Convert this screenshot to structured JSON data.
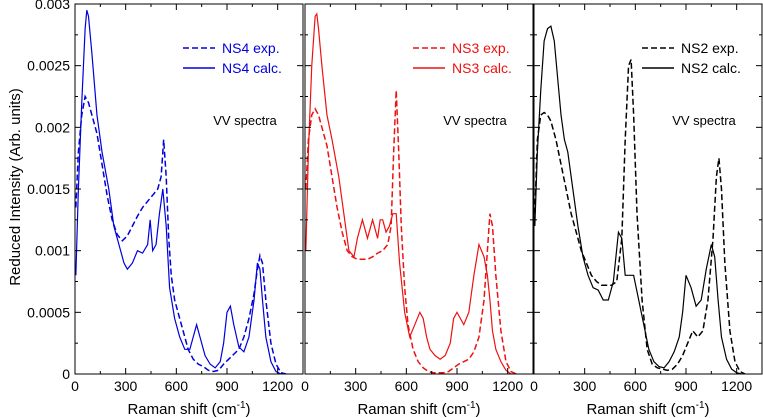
{
  "chart_data": {
    "type": "line",
    "ylabel": "Reduced Intensity (Arb. units)",
    "ylim": [
      0,
      0.003
    ],
    "yticks": [
      "0",
      "0.0005",
      "0.001",
      "0.0015",
      "0.002",
      "0.0025",
      "0.003"
    ],
    "yticks_values": [
      0,
      0.0005,
      0.001,
      0.0015,
      0.002,
      0.0025,
      0.003
    ],
    "xlim": [
      0,
      1350
    ],
    "xticks": [
      "0",
      "300",
      "600",
      "900",
      "1200"
    ],
    "xticks_values": [
      0,
      300,
      600,
      900,
      1200
    ],
    "xlabel_text": "Raman shift (cm",
    "xlabel_sup": "-1",
    "xlabel_close": ")",
    "panels": [
      {
        "color": "#0000dd",
        "annotation": "VV spectra",
        "series": [
          {
            "name": "NS4 exp.",
            "style": "dashed",
            "x": [
              5,
              20,
              40,
              60,
              80,
              100,
              130,
              160,
              190,
              220,
              250,
              280,
              310,
              340,
              370,
              400,
              430,
              460,
              490,
              510,
              525,
              540,
              555,
              570,
              590,
              610,
              640,
              670,
              700,
              730,
              760,
              790,
              820,
              850,
              880,
              910,
              940,
              970,
              1000,
              1030,
              1060,
              1080,
              1095,
              1110,
              1130,
              1160,
              1190,
              1220,
              1250
            ],
            "y": [
              0.00135,
              0.0018,
              0.0021,
              0.00225,
              0.0022,
              0.0021,
              0.00195,
              0.0017,
              0.00145,
              0.00125,
              0.00113,
              0.00108,
              0.00112,
              0.0012,
              0.00128,
              0.00135,
              0.0014,
              0.00145,
              0.0015,
              0.0016,
              0.0019,
              0.0016,
              0.0011,
              0.0008,
              0.0006,
              0.0005,
              0.00035,
              0.0002,
              0.00012,
              8e-05,
              6e-05,
              3e-05,
              2e-05,
              3e-05,
              8e-05,
              0.00012,
              0.00016,
              0.0002,
              0.0003,
              0.00045,
              0.00065,
              0.00085,
              0.00096,
              0.0009,
              0.0006,
              0.00025,
              8e-05,
              1e-05,
              0
            ]
          },
          {
            "name": "NS4 calc.",
            "style": "solid",
            "x": [
              5,
              20,
              40,
              60,
              70,
              80,
              100,
              130,
              160,
              200,
              230,
              260,
              290,
              310,
              340,
              370,
              400,
              430,
              445,
              460,
              480,
              500,
              520,
              540,
              560,
              590,
              620,
              650,
              680,
              700,
              720,
              740,
              770,
              800,
              830,
              860,
              880,
              900,
              920,
              940,
              970,
              1000,
              1030,
              1060,
              1080,
              1095,
              1110,
              1130,
              1160,
              1190,
              1220,
              1250
            ],
            "y": [
              0.0008,
              0.0015,
              0.0022,
              0.0028,
              0.00295,
              0.0029,
              0.0026,
              0.0021,
              0.0018,
              0.0015,
              0.0012,
              0.00105,
              0.0009,
              0.00085,
              0.0009,
              0.001,
              0.00098,
              0.00105,
              0.00125,
              0.001,
              0.00105,
              0.0013,
              0.0015,
              0.0012,
              0.0007,
              0.00045,
              0.0003,
              0.0002,
              0.0002,
              0.0003,
              0.0004,
              0.0003,
              0.00015,
              8e-05,
              5e-05,
              0.0001,
              0.00025,
              0.0005,
              0.00055,
              0.0004,
              0.00022,
              0.00018,
              0.0003,
              0.0006,
              0.0009,
              0.00085,
              0.0006,
              0.0003,
              0.0001,
              2e-05,
              0,
              0
            ]
          }
        ]
      },
      {
        "color": "#ee1111",
        "annotation": "VV spectra",
        "series": [
          {
            "name": "NS3 exp.",
            "style": "dashed",
            "x": [
              5,
              20,
              40,
              60,
              80,
              100,
              130,
              160,
              190,
              220,
              250,
              280,
              310,
              340,
              370,
              400,
              430,
              460,
              490,
              510,
              525,
              540,
              555,
              570,
              590,
              610,
              640,
              670,
              700,
              730,
              760,
              790,
              820,
              850,
              880,
              910,
              940,
              970,
              1000,
              1030,
              1060,
              1080,
              1095,
              1110,
              1130,
              1160,
              1190,
              1220,
              1250
            ],
            "y": [
              0.0015,
              0.0019,
              0.0021,
              0.00215,
              0.0021,
              0.002,
              0.00185,
              0.0016,
              0.00135,
              0.00115,
              0.001,
              0.00095,
              0.00093,
              0.00093,
              0.00093,
              0.00095,
              0.00098,
              0.001,
              0.00105,
              0.0012,
              0.0018,
              0.0023,
              0.0018,
              0.0012,
              0.0007,
              0.0004,
              0.0002,
              0.0001,
              5e-05,
              2e-05,
              1e-05,
              1e-05,
              1e-05,
              2e-05,
              5e-05,
              8e-05,
              0.0001,
              0.00012,
              0.00018,
              0.0003,
              0.0006,
              0.001,
              0.0013,
              0.0012,
              0.0008,
              0.00035,
              0.0001,
              2e-05,
              0
            ]
          },
          {
            "name": "NS3 calc.",
            "style": "solid",
            "x": [
              5,
              20,
              40,
              60,
              70,
              80,
              100,
              130,
              160,
              200,
              230,
              260,
              290,
              310,
              340,
              370,
              400,
              430,
              445,
              460,
              480,
              500,
              520,
              540,
              560,
              590,
              620,
              650,
              680,
              700,
              720,
              740,
              770,
              800,
              830,
              860,
              880,
              900,
              920,
              940,
              970,
              1000,
              1030,
              1060,
              1080,
              1095,
              1110,
              1130,
              1160,
              1190,
              1220,
              1250
            ],
            "y": [
              0.001,
              0.0018,
              0.0025,
              0.0029,
              0.00292,
              0.0028,
              0.0025,
              0.0021,
              0.0019,
              0.0016,
              0.0013,
              0.001,
              0.00095,
              0.0011,
              0.00125,
              0.0011,
              0.00125,
              0.0011,
              0.00125,
              0.00125,
              0.00115,
              0.0012,
              0.0013,
              0.0013,
              0.0009,
              0.0005,
              0.0003,
              0.0004,
              0.0005,
              0.00045,
              0.0003,
              0.0002,
              0.00015,
              0.00012,
              0.00015,
              0.00025,
              0.00045,
              0.0005,
              0.00045,
              0.0004,
              0.0005,
              0.0008,
              0.00105,
              0.00095,
              0.0008,
              0.0006,
              0.00035,
              0.0002,
              0.0001,
              3e-05,
              0,
              0
            ]
          }
        ]
      },
      {
        "color": "#000000",
        "annotation": "VV spectra",
        "series": [
          {
            "name": "NS2 exp.",
            "style": "dashed",
            "x": [
              5,
              20,
              40,
              60,
              80,
              100,
              130,
              160,
              190,
              220,
              250,
              280,
              310,
              340,
              370,
              400,
              430,
              460,
              490,
              520,
              540,
              560,
              575,
              590,
              610,
              640,
              670,
              700,
              730,
              760,
              790,
              820,
              850,
              880,
              910,
              940,
              970,
              1000,
              1030,
              1060,
              1080,
              1095,
              1110,
              1130,
              1160,
              1190,
              1220,
              1250
            ],
            "y": [
              0.0013,
              0.0019,
              0.0021,
              0.00212,
              0.0021,
              0.00205,
              0.0019,
              0.0017,
              0.0015,
              0.0013,
              0.00115,
              0.001,
              0.0009,
              0.0008,
              0.00075,
              0.00072,
              0.00072,
              0.00072,
              0.00075,
              0.0011,
              0.0019,
              0.0025,
              0.00255,
              0.0021,
              0.0013,
              0.0006,
              0.0002,
              8e-05,
              5e-05,
              4e-05,
              3e-05,
              4e-05,
              8e-05,
              0.00015,
              0.00025,
              0.00035,
              0.0003,
              0.00035,
              0.0006,
              0.0011,
              0.0016,
              0.00175,
              0.0015,
              0.0009,
              0.00035,
              0.0001,
              2e-05,
              0
            ]
          },
          {
            "name": "NS2 calc.",
            "style": "solid",
            "x": [
              5,
              20,
              40,
              60,
              80,
              100,
              120,
              140,
              160,
              180,
              200,
              230,
              260,
              290,
              320,
              350,
              380,
              410,
              440,
              470,
              500,
              520,
              540,
              560,
              590,
              620,
              650,
              680,
              710,
              740,
              770,
              800,
              830,
              860,
              880,
              900,
              930,
              960,
              990,
              1020,
              1050,
              1070,
              1090,
              1110,
              1140,
              1170,
              1200,
              1230
            ],
            "y": [
              0.0012,
              0.0018,
              0.0023,
              0.0027,
              0.0028,
              0.00282,
              0.0027,
              0.0024,
              0.0021,
              0.0019,
              0.0018,
              0.0015,
              0.0012,
              0.00095,
              0.0008,
              0.0007,
              0.00068,
              0.0006,
              0.0006,
              0.00075,
              0.00115,
              0.0011,
              0.0008,
              0.0008,
              0.0008,
              0.0006,
              0.0004,
              0.0002,
              0.0001,
              6e-05,
              5e-05,
              0.0001,
              0.00018,
              0.0003,
              0.0005,
              0.0008,
              0.0007,
              0.00055,
              0.0006,
              0.00085,
              0.00105,
              0.00095,
              0.0006,
              0.0003,
              0.00012,
              4e-05,
              1e-05,
              0
            ]
          }
        ]
      }
    ]
  }
}
